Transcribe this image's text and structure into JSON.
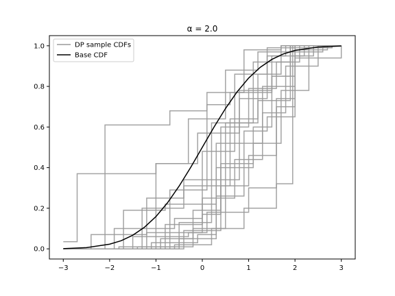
{
  "chart_data": {
    "type": "line",
    "title": "α = 2.0",
    "xlabel": "",
    "ylabel": "",
    "xlim": [
      -3.3,
      3.3
    ],
    "ylim": [
      -0.05,
      1.05
    ],
    "x_ticks": [
      -3,
      -2,
      -1,
      0,
      1,
      2,
      3
    ],
    "x_tick_labels": [
      "−3",
      "−2",
      "−1",
      "0",
      "1",
      "2",
      "3"
    ],
    "y_ticks": [
      0.0,
      0.2,
      0.4,
      0.6,
      0.8,
      1.0
    ],
    "y_tick_labels": [
      "0.0",
      "0.2",
      "0.4",
      "0.6",
      "0.8",
      "1.0"
    ],
    "grid": false,
    "legend": {
      "placement": "top-left",
      "entries": [
        {
          "label": "DP sample CDFs",
          "color": "#999999"
        },
        {
          "label": "Base CDF",
          "color": "#000000"
        }
      ]
    },
    "colors": {
      "sample": "#999999",
      "base": "#000000"
    },
    "base_cdf": {
      "name": "Base CDF",
      "x": [
        -3.0,
        -2.5,
        -2.0,
        -1.75,
        -1.5,
        -1.25,
        -1.0,
        -0.75,
        -0.5,
        -0.25,
        0.0,
        0.25,
        0.5,
        0.75,
        1.0,
        1.25,
        1.5,
        1.75,
        2.0,
        2.5,
        3.0
      ],
      "y": [
        0.001,
        0.006,
        0.023,
        0.04,
        0.067,
        0.106,
        0.159,
        0.227,
        0.309,
        0.401,
        0.5,
        0.599,
        0.691,
        0.773,
        0.841,
        0.894,
        0.933,
        0.96,
        0.977,
        0.994,
        0.999
      ]
    },
    "sample_series": [
      {
        "steps": [
          [
            -2.1,
            0.61
          ],
          [
            -0.7,
            0.68
          ],
          [
            0.1,
            0.77
          ],
          [
            0.9,
            0.98
          ],
          [
            1.7,
            1.0
          ]
        ]
      },
      {
        "start": 0.035,
        "steps": [
          [
            -2.7,
            0.37
          ],
          [
            -1.0,
            0.42
          ],
          [
            -0.1,
            0.57
          ],
          [
            0.8,
            0.78
          ],
          [
            1.5,
            0.95
          ],
          [
            2.2,
            1.0
          ]
        ]
      },
      {
        "steps": [
          [
            -1.3,
            0.2
          ],
          [
            -0.4,
            0.34
          ],
          [
            0.2,
            0.62
          ],
          [
            1.1,
            0.92
          ],
          [
            1.9,
            1.0
          ]
        ]
      },
      {
        "steps": [
          [
            -1.7,
            0.19
          ],
          [
            -0.8,
            0.22
          ],
          [
            0.3,
            0.52
          ],
          [
            1.3,
            0.8
          ],
          [
            2.0,
            1.0
          ]
        ]
      },
      {
        "steps": [
          [
            -1.0,
            0.42
          ],
          [
            -0.3,
            0.64
          ],
          [
            0.5,
            0.88
          ],
          [
            1.2,
            0.97
          ],
          [
            2.6,
            1.0
          ]
        ]
      },
      {
        "steps": [
          [
            -1.9,
            0.1
          ],
          [
            -0.6,
            0.15
          ],
          [
            0.0,
            0.48
          ],
          [
            0.7,
            0.86
          ],
          [
            1.4,
            0.95
          ],
          [
            1.8,
            1.0
          ]
        ]
      },
      {
        "steps": [
          [
            -0.9,
            0.05
          ],
          [
            -0.2,
            0.19
          ],
          [
            0.4,
            0.6
          ],
          [
            1.0,
            0.79
          ],
          [
            1.6,
            0.92
          ],
          [
            2.1,
            1.0
          ]
        ]
      },
      {
        "steps": [
          [
            -1.4,
            0.01
          ],
          [
            -0.5,
            0.13
          ],
          [
            0.2,
            0.34
          ],
          [
            0.8,
            0.74
          ],
          [
            1.4,
            0.99
          ],
          [
            2.8,
            1.0
          ]
        ]
      },
      {
        "steps": [
          [
            -0.7,
            0.29
          ],
          [
            0.1,
            0.71
          ],
          [
            0.6,
            0.77
          ],
          [
            1.5,
            0.85
          ],
          [
            2.0,
            1.0
          ]
        ]
      },
      {
        "steps": [
          [
            -1.1,
            0.03
          ],
          [
            -0.1,
            0.07
          ],
          [
            0.3,
            0.4
          ],
          [
            1.1,
            0.52
          ],
          [
            1.7,
            0.78
          ],
          [
            2.3,
            1.0
          ]
        ]
      },
      {
        "steps": [
          [
            -2.4,
            0.07
          ],
          [
            -1.2,
            0.25
          ],
          [
            -0.4,
            0.31
          ],
          [
            0.6,
            0.64
          ],
          [
            1.2,
            0.73
          ],
          [
            1.9,
            1.0
          ]
        ]
      },
      {
        "steps": [
          [
            -0.8,
            0.12
          ],
          [
            0.0,
            0.25
          ],
          [
            0.7,
            0.44
          ],
          [
            1.3,
            0.67
          ],
          [
            1.8,
            0.9
          ],
          [
            2.5,
            1.0
          ]
        ]
      },
      {
        "steps": [
          [
            -1.5,
            0.06
          ],
          [
            -0.3,
            0.08
          ],
          [
            0.1,
            0.18
          ],
          [
            1.0,
            0.3
          ],
          [
            1.6,
            0.32
          ],
          [
            1.95,
            1.0
          ]
        ]
      },
      {
        "steps": [
          [
            -0.6,
            0.02
          ],
          [
            0.2,
            0.1
          ],
          [
            0.9,
            0.2
          ],
          [
            1.6,
            0.74
          ],
          [
            2.0,
            0.94
          ],
          [
            3.0,
            1.0
          ]
        ]
      },
      {
        "steps": [
          [
            -1.2,
            0.08
          ],
          [
            0.0,
            0.17
          ],
          [
            0.4,
            0.42
          ],
          [
            1.1,
            0.6
          ],
          [
            1.5,
            0.85
          ],
          [
            1.9,
            1.0
          ]
        ]
      },
      {
        "steps": [
          [
            -0.5,
            0.05
          ],
          [
            0.3,
            0.26
          ],
          [
            0.9,
            0.58
          ],
          [
            1.4,
            0.65
          ],
          [
            2.0,
            0.95
          ],
          [
            2.4,
            1.0
          ]
        ]
      },
      {
        "steps": [
          [
            -1.8,
            0.01
          ],
          [
            -0.9,
            0.01
          ],
          [
            -0.2,
            0.1
          ],
          [
            0.5,
            0.62
          ],
          [
            1.2,
            0.86
          ],
          [
            1.7,
            1.0
          ]
        ]
      },
      {
        "steps": [
          [
            -0.4,
            0.09
          ],
          [
            0.4,
            0.31
          ],
          [
            1.0,
            0.46
          ],
          [
            1.6,
            0.7
          ],
          [
            2.0,
            0.98
          ],
          [
            2.7,
            1.0
          ]
        ]
      }
    ]
  }
}
